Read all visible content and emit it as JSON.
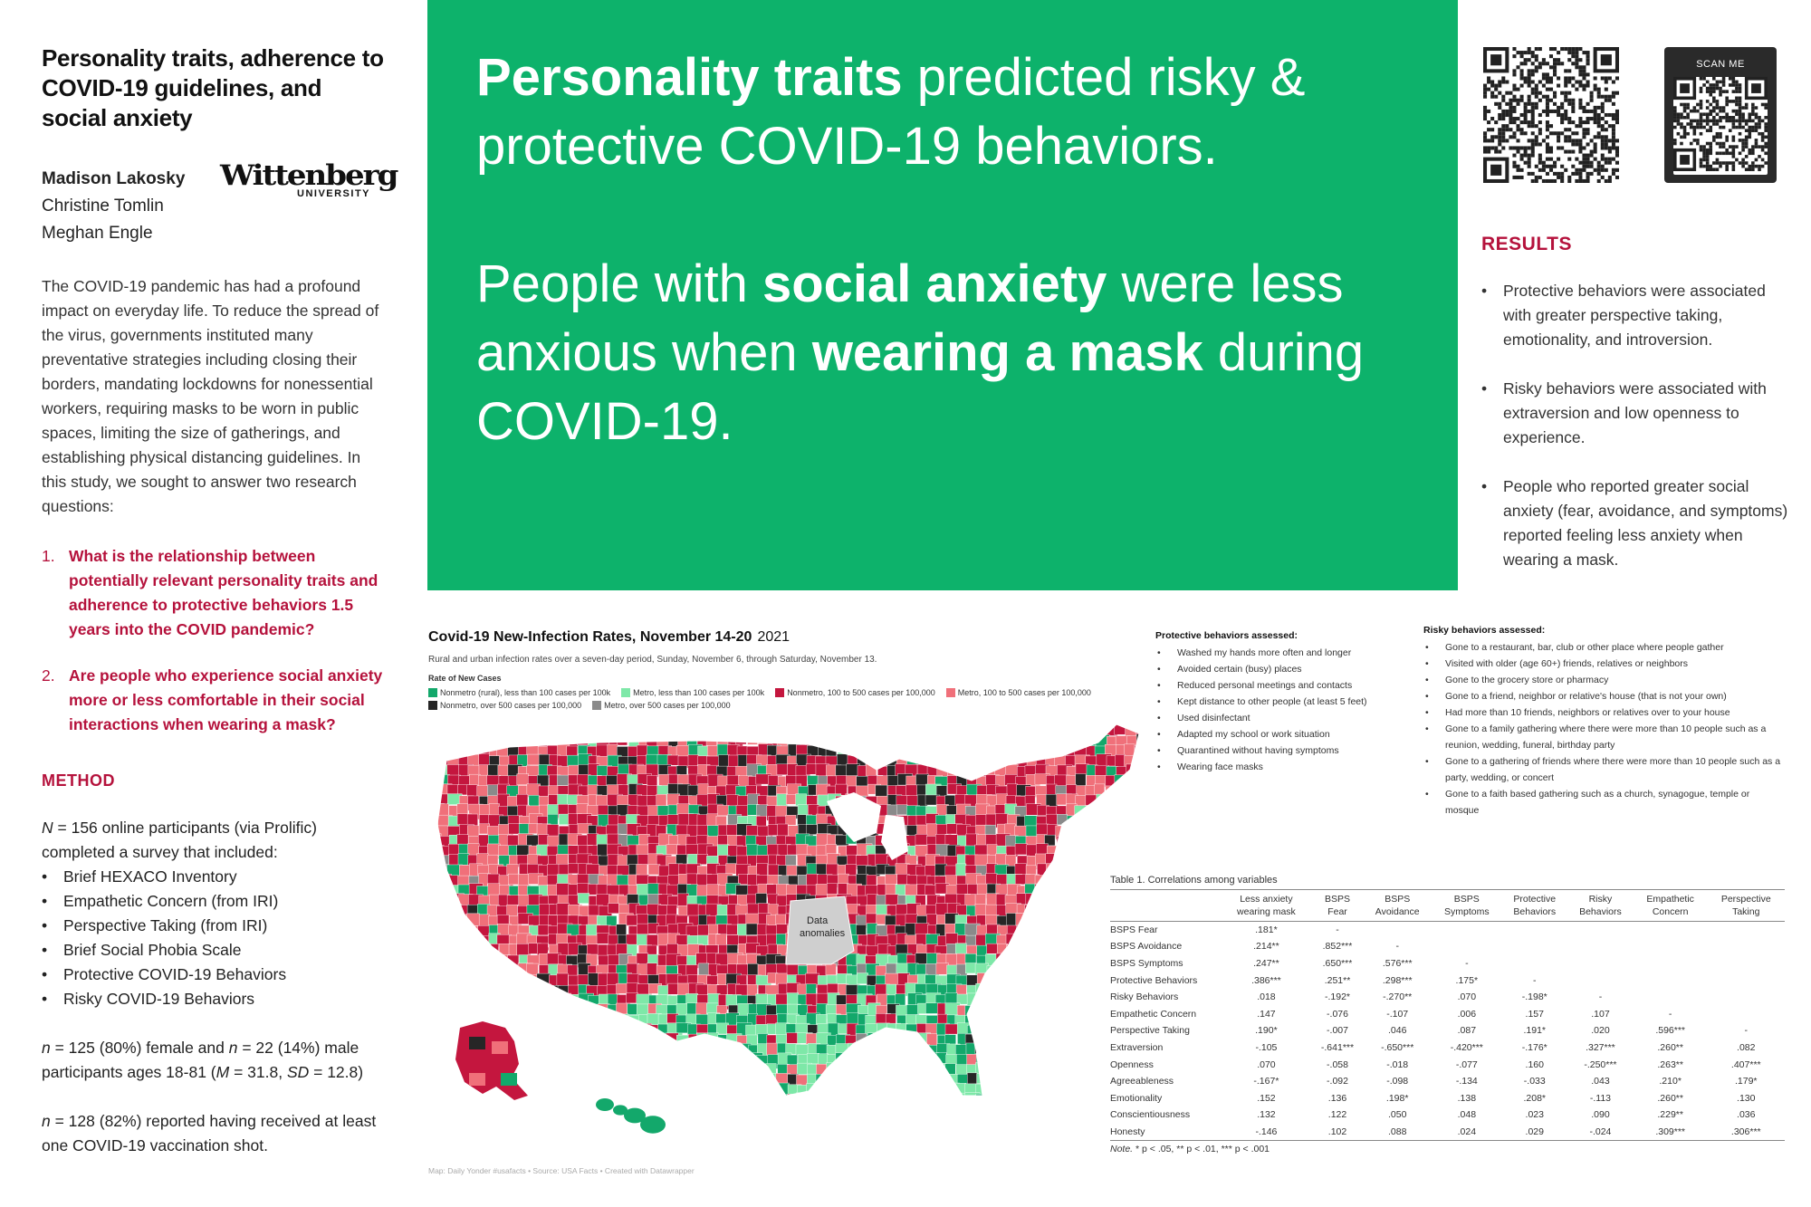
{
  "left": {
    "title": "Personality traits, adherence to COVID-19 guidelines, and social anxiety",
    "authors": [
      "Madison Lakosky",
      "Christine Tomlin",
      "Meghan Engle"
    ],
    "logo": {
      "wordmark": "Wittenberg",
      "sub": "UNIVERSITY"
    },
    "intro": "The COVID-19 pandemic has had a profound impact on everyday life. To reduce the spread of the virus, governments instituted many preventative strategies including closing their borders, mandating lockdowns for nonessential workers, requiring masks to be worn in public spaces, limiting the size of gatherings, and establishing physical distancing guidelines. In this study, we sought to answer two research questions:",
    "questions": [
      {
        "num": "1.",
        "text": "What is the relationship between potentially relevant personality traits and adherence to protective behaviors 1.5 years into the COVID pandemic?"
      },
      {
        "num": "2.",
        "text": "Are people who experience social anxiety more or less comfortable in their social interactions when wearing a mask?"
      }
    ],
    "method_heading": "METHOD",
    "method_n": "N",
    "method_intro": " = 156 online participants (via Prolific) completed a survey that included:",
    "measures": [
      "Brief HEXACO Inventory",
      "Empathetic Concern (from IRI)",
      "Perspective Taking (from IRI)",
      "Brief Social Phobia Scale",
      "Protective COVID-19 Behaviors",
      "Risky COVID-19 Behaviors"
    ],
    "demographics": {
      "n1": "n",
      "t1": " = 125 (80%) female and ",
      "n2": "n",
      "t2": " = 22 (14%) male participants ages 18-81 (",
      "m": "M",
      "t3": " = 31.8, ",
      "sd": "SD",
      "t4": " = 12.8)"
    },
    "vaccine": {
      "n": "n",
      "text": " = 128 (82%) reported having received at least one COVID-19 vaccination shot."
    }
  },
  "headline": {
    "p1_bold": "Personality traits",
    "p1_rest": " predicted risky & protective COVID-19 behaviors.",
    "p2_a": "People with ",
    "p2_bold1": "social anxiety",
    "p2_b": " were less anxious when ",
    "p2_bold2": "wearing a mask",
    "p2_c": " during COVID-19."
  },
  "qr": {
    "scan_label": "SCAN ME"
  },
  "results": {
    "heading": "RESULTS",
    "items": [
      "Protective behaviors were associated with greater perspective taking, emotionality, and introversion.",
      "Risky behaviors were associated with extraversion and low openness to experience.",
      "People who reported greater social anxiety (fear, avoidance, and symptoms) reported feeling less anxiety when wearing a mask."
    ]
  },
  "map": {
    "title": "Covid-19 New-Infection Rates, November 14-20",
    "year": "2021",
    "subtitle": "Rural and urban infection rates over a seven-day period, Sunday, November 6, through Saturday, November 13.",
    "legend_title": "Rate of New Cases",
    "legend": [
      {
        "label": "Nonmetro (rural), less than 100 cases per 100k",
        "color": "#13a86b"
      },
      {
        "label": "Metro, less than 100 cases per 100k",
        "color": "#7ee8a8"
      },
      {
        "label": "Nonmetro, 100 to 500 cases per 100,000",
        "color": "#c4163e"
      },
      {
        "label": "Metro, 100 to 500 cases per 100,000",
        "color": "#f0707a"
      },
      {
        "label": "Nonmetro, over 500 cases per 100,000",
        "color": "#262626"
      },
      {
        "label": "Metro, over 500 cases per 100,000",
        "color": "#8a8a8a"
      }
    ],
    "anomaly_label_1": "Data",
    "anomaly_label_2": "anomalies",
    "footer": "Map: Daily Yonder #usafacts • Source: USA Facts • Created with Datawrapper"
  },
  "protective": {
    "heading": "Protective behaviors assessed:",
    "items": [
      "Washed my hands more often and longer",
      "Avoided certain (busy) places",
      "Reduced personal meetings and contacts",
      "Kept distance to other people (at least 5 feet)",
      "Used disinfectant",
      "Adapted my school or work situation",
      "Quarantined without having symptoms",
      "Wearing face masks"
    ]
  },
  "risky": {
    "heading": "Risky behaviors assessed:",
    "items": [
      "Gone to a restaurant, bar, club or other place where people gather",
      "Visited with older (age 60+) friends, relatives or neighbors",
      "Gone to the grocery store or pharmacy",
      "Gone to a friend, neighbor or relative's house (that is not your own)",
      "Had more than 10 friends, neighbors or relatives over to your house",
      "Gone to a family gathering where there were more than 10 people such as a reunion, wedding, funeral, birthday party",
      "Gone to a gathering of friends where there were more than 10 people such as a party, wedding, or concert",
      "Gone to a faith based gathering such as a church, synagogue, temple or mosque"
    ]
  },
  "table": {
    "caption": "Table 1. Correlations among variables",
    "headers": [
      [
        "",
        ""
      ],
      [
        "Less anxiety",
        "wearing mask"
      ],
      [
        "BSPS",
        "Fear"
      ],
      [
        "BSPS",
        "Avoidance"
      ],
      [
        "BSPS",
        "Symptoms"
      ],
      [
        "Protective",
        "Behaviors"
      ],
      [
        "Risky",
        "Behaviors"
      ],
      [
        "Empathetic",
        "Concern"
      ],
      [
        "Perspective",
        "Taking"
      ]
    ],
    "rows": [
      [
        "BSPS Fear",
        ".181*",
        "-",
        "",
        "",
        "",
        "",
        "",
        ""
      ],
      [
        "BSPS Avoidance",
        ".214**",
        ".852***",
        "-",
        "",
        "",
        "",
        "",
        ""
      ],
      [
        "BSPS Symptoms",
        ".247**",
        ".650***",
        ".576***",
        "-",
        "",
        "",
        "",
        ""
      ],
      [
        "Protective Behaviors",
        ".386***",
        ".251**",
        ".298***",
        ".175*",
        "-",
        "",
        "",
        ""
      ],
      [
        "Risky Behaviors",
        ".018",
        "-.192*",
        "-.270**",
        ".070",
        "-.198*",
        "-",
        "",
        ""
      ],
      [
        "Empathetic Concern",
        ".147",
        "-.076",
        "-.107",
        ".006",
        ".157",
        ".107",
        "-",
        ""
      ],
      [
        "Perspective Taking",
        ".190*",
        "-.007",
        ".046",
        ".087",
        ".191*",
        ".020",
        ".596***",
        "-"
      ],
      [
        "Extraversion",
        "-.105",
        "-.641***",
        "-.650***",
        "-.420***",
        "-.176*",
        ".327***",
        ".260**",
        ".082"
      ],
      [
        "Openness",
        ".070",
        "-.058",
        "-.018",
        "-.077",
        ".160",
        "-.250***",
        ".263**",
        ".407***"
      ],
      [
        "Agreeableness",
        "-.167*",
        "-.092",
        "-.098",
        "-.134",
        "-.033",
        ".043",
        ".210*",
        ".179*"
      ],
      [
        "Emotionality",
        ".152",
        ".136",
        ".198*",
        ".138",
        ".208*",
        "-.113",
        ".260**",
        ".130"
      ],
      [
        "Conscientiousness",
        ".132",
        ".122",
        ".050",
        ".048",
        ".023",
        ".090",
        ".229**",
        ".036"
      ],
      [
        "Honesty",
        "-.146",
        ".102",
        ".088",
        ".024",
        ".029",
        "-.024",
        ".309***",
        ".306***"
      ]
    ],
    "note_label": "Note.",
    "note_text": " * p < .05, ** p < .01, *** p < .001"
  }
}
